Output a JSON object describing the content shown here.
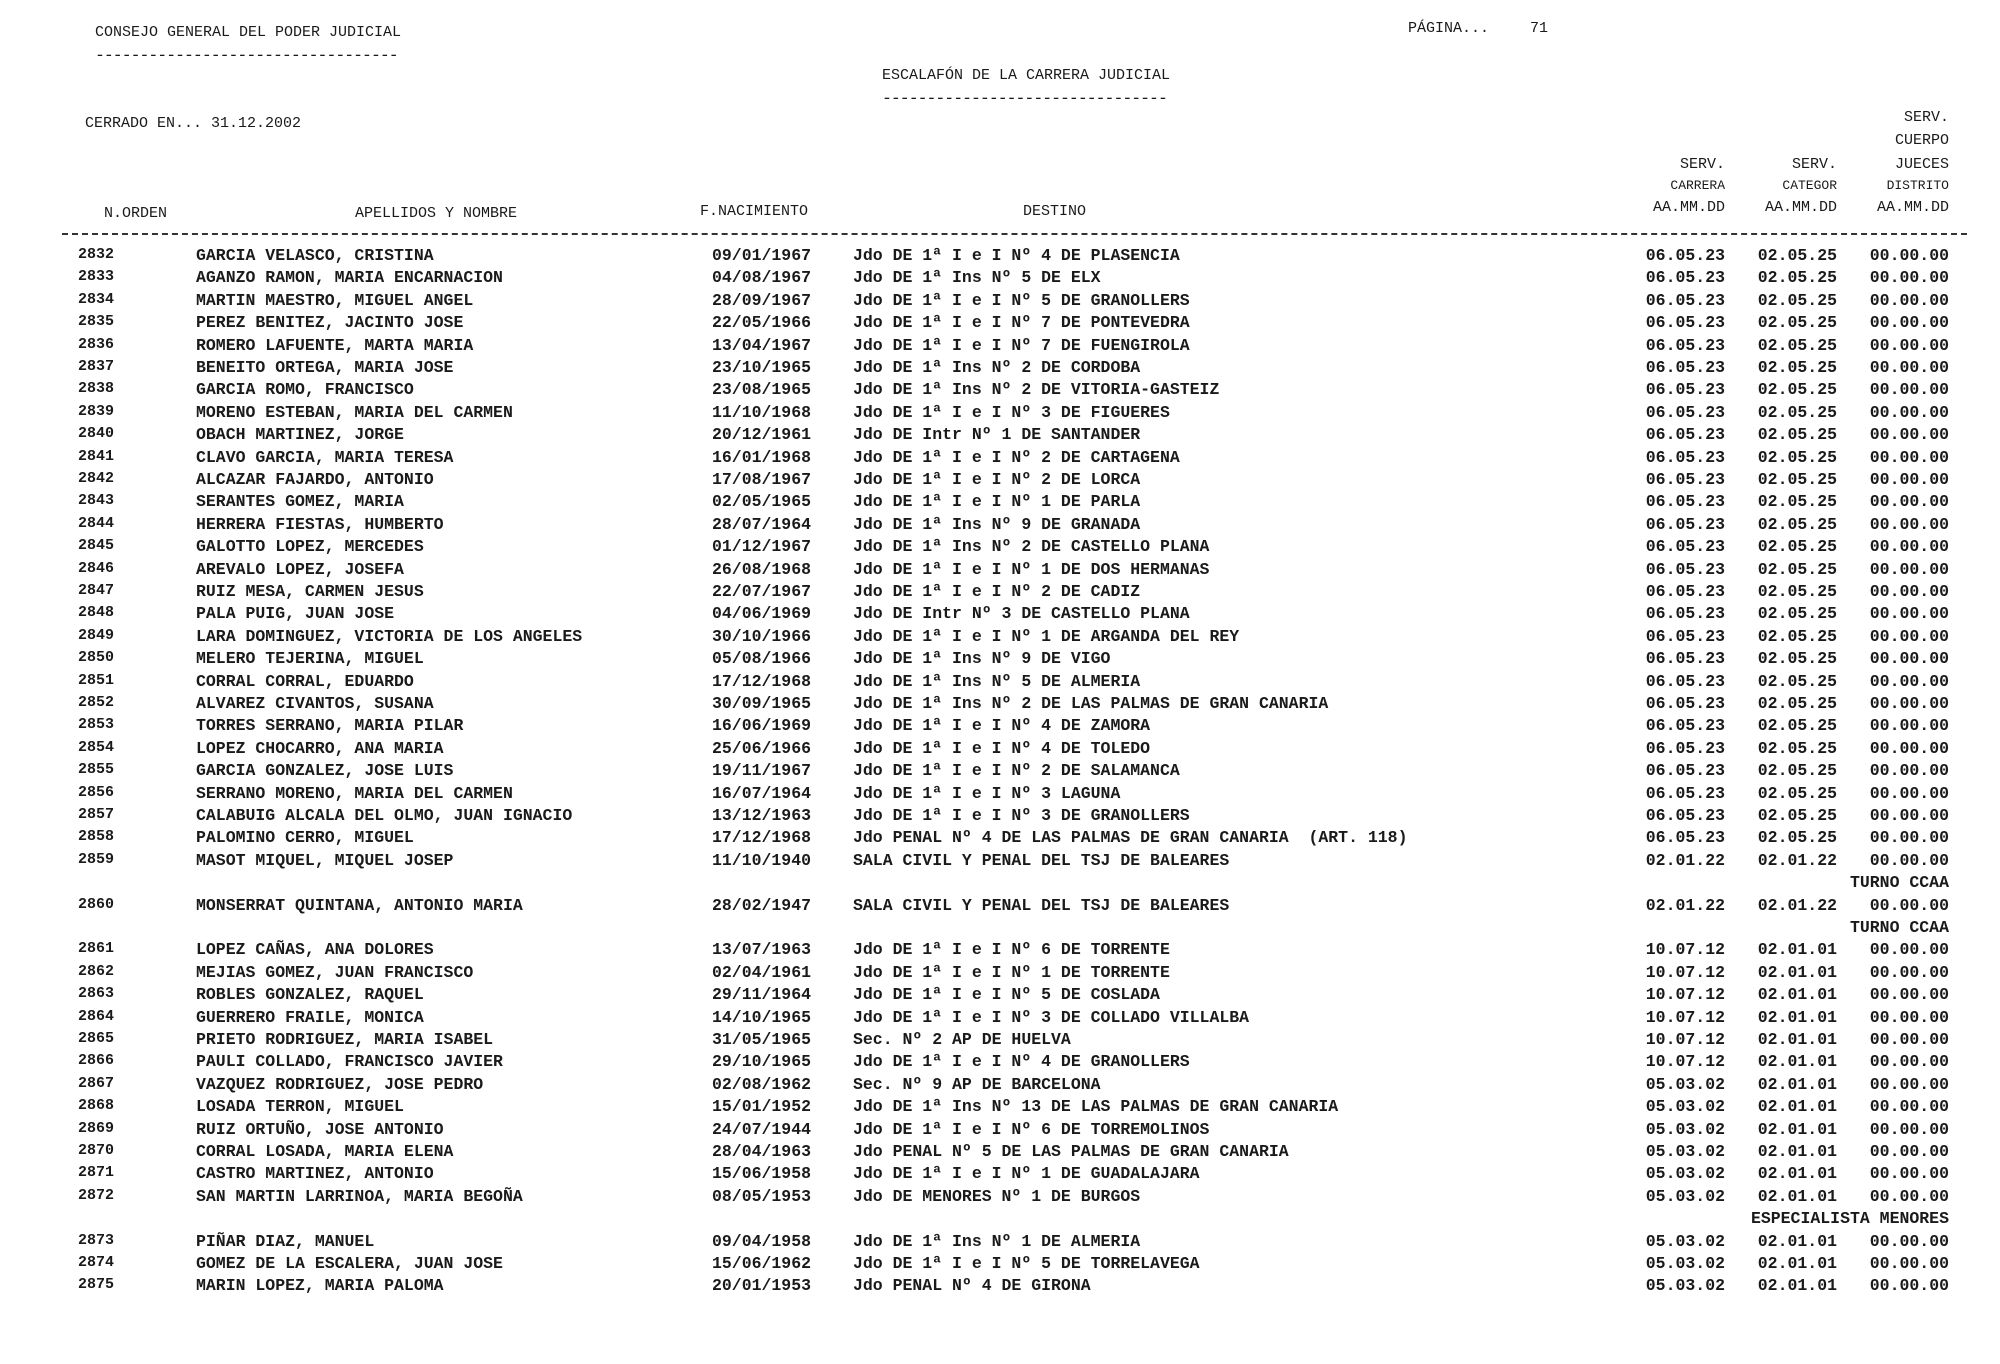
{
  "header": {
    "org": "CONSEJO GENERAL DEL PODER JUDICIAL",
    "page_label": "PÁGINA...",
    "page_number": "71",
    "title": "ESCALAFÓN DE LA CARRERA JUDICIAL",
    "closed": "CERRADO EN... 31.12.2002"
  },
  "columns": {
    "orden": "N.ORDEN",
    "nombre": "APELLIDOS Y NOMBRE",
    "nacimiento": "F.NACIMIENTO",
    "destino": "DESTINO",
    "carrera": [
      "SERV.",
      "CARRERA",
      "AA.MM.DD"
    ],
    "categor": [
      "SERV.",
      "CATEGOR",
      "AA.MM.DD"
    ],
    "jueces": [
      "SERV.",
      "CUERPO",
      "JUECES",
      "DISTRITO",
      "AA.MM.DD"
    ]
  },
  "rows": [
    {
      "n": "2832",
      "name": "GARCIA VELASCO, CRISTINA",
      "date": "09/01/1967",
      "dest": "Jdo DE 1ª I e I Nº 4 DE PLASENCIA",
      "s1": "06.05.23",
      "s2": "02.05.25",
      "s3": "00.00.00"
    },
    {
      "n": "2833",
      "name": "AGANZO RAMON, MARIA ENCARNACION",
      "date": "04/08/1967",
      "dest": "Jdo DE 1ª Ins Nº 5 DE ELX",
      "s1": "06.05.23",
      "s2": "02.05.25",
      "s3": "00.00.00"
    },
    {
      "n": "2834",
      "name": "MARTIN MAESTRO, MIGUEL ANGEL",
      "date": "28/09/1967",
      "dest": "Jdo DE 1ª I e I Nº 5 DE GRANOLLERS",
      "s1": "06.05.23",
      "s2": "02.05.25",
      "s3": "00.00.00"
    },
    {
      "n": "2835",
      "name": "PEREZ BENITEZ, JACINTO JOSE",
      "date": "22/05/1966",
      "dest": "Jdo DE 1ª I e I Nº 7 DE PONTEVEDRA",
      "s1": "06.05.23",
      "s2": "02.05.25",
      "s3": "00.00.00"
    },
    {
      "n": "2836",
      "name": "ROMERO LAFUENTE, MARTA MARIA",
      "date": "13/04/1967",
      "dest": "Jdo DE 1ª I e I Nº 7 DE FUENGIROLA",
      "s1": "06.05.23",
      "s2": "02.05.25",
      "s3": "00.00.00"
    },
    {
      "n": "2837",
      "name": "BENEITO ORTEGA, MARIA JOSE",
      "date": "23/10/1965",
      "dest": "Jdo DE 1ª Ins Nº 2 DE CORDOBA",
      "s1": "06.05.23",
      "s2": "02.05.25",
      "s3": "00.00.00"
    },
    {
      "n": "2838",
      "name": "GARCIA ROMO, FRANCISCO",
      "date": "23/08/1965",
      "dest": "Jdo DE 1ª Ins Nº 2 DE VITORIA-GASTEIZ",
      "s1": "06.05.23",
      "s2": "02.05.25",
      "s3": "00.00.00"
    },
    {
      "n": "2839",
      "name": "MORENO ESTEBAN, MARIA DEL CARMEN",
      "date": "11/10/1968",
      "dest": "Jdo DE 1ª I e I Nº 3 DE FIGUERES",
      "s1": "06.05.23",
      "s2": "02.05.25",
      "s3": "00.00.00"
    },
    {
      "n": "2840",
      "name": "OBACH MARTINEZ, JORGE",
      "date": "20/12/1961",
      "dest": "Jdo DE Intr Nº 1 DE SANTANDER",
      "s1": "06.05.23",
      "s2": "02.05.25",
      "s3": "00.00.00"
    },
    {
      "n": "2841",
      "name": "CLAVO GARCIA, MARIA TERESA",
      "date": "16/01/1968",
      "dest": "Jdo DE 1ª I e I Nº 2 DE CARTAGENA",
      "s1": "06.05.23",
      "s2": "02.05.25",
      "s3": "00.00.00"
    },
    {
      "n": "2842",
      "name": "ALCAZAR FAJARDO, ANTONIO",
      "date": "17/08/1967",
      "dest": "Jdo DE 1ª I e I Nº 2 DE LORCA",
      "s1": "06.05.23",
      "s2": "02.05.25",
      "s3": "00.00.00"
    },
    {
      "n": "2843",
      "name": "SERANTES GOMEZ, MARIA",
      "date": "02/05/1965",
      "dest": "Jdo DE 1ª I e I Nº 1 DE PARLA",
      "s1": "06.05.23",
      "s2": "02.05.25",
      "s3": "00.00.00"
    },
    {
      "n": "2844",
      "name": "HERRERA FIESTAS, HUMBERTO",
      "date": "28/07/1964",
      "dest": "Jdo DE 1ª Ins Nº 9 DE GRANADA",
      "s1": "06.05.23",
      "s2": "02.05.25",
      "s3": "00.00.00"
    },
    {
      "n": "2845",
      "name": "GALOTTO LOPEZ, MERCEDES",
      "date": "01/12/1967",
      "dest": "Jdo DE 1ª Ins Nº 2 DE CASTELLO PLANA",
      "s1": "06.05.23",
      "s2": "02.05.25",
      "s3": "00.00.00"
    },
    {
      "n": "2846",
      "name": "AREVALO LOPEZ, JOSEFA",
      "date": "26/08/1968",
      "dest": "Jdo DE 1ª I e I Nº 1 DE DOS HERMANAS",
      "s1": "06.05.23",
      "s2": "02.05.25",
      "s3": "00.00.00"
    },
    {
      "n": "2847",
      "name": "RUIZ MESA, CARMEN JESUS",
      "date": "22/07/1967",
      "dest": "Jdo DE 1ª I e I Nº 2 DE CADIZ",
      "s1": "06.05.23",
      "s2": "02.05.25",
      "s3": "00.00.00"
    },
    {
      "n": "2848",
      "name": "PALA PUIG, JUAN JOSE",
      "date": "04/06/1969",
      "dest": "Jdo DE Intr Nº 3 DE CASTELLO PLANA",
      "s1": "06.05.23",
      "s2": "02.05.25",
      "s3": "00.00.00"
    },
    {
      "n": "2849",
      "name": "LARA DOMINGUEZ, VICTORIA DE LOS ANGELES",
      "date": "30/10/1966",
      "dest": "Jdo DE 1ª I e I Nº 1 DE ARGANDA DEL REY",
      "s1": "06.05.23",
      "s2": "02.05.25",
      "s3": "00.00.00"
    },
    {
      "n": "2850",
      "name": "MELERO TEJERINA, MIGUEL",
      "date": "05/08/1966",
      "dest": "Jdo DE 1ª Ins Nº 9 DE VIGO",
      "s1": "06.05.23",
      "s2": "02.05.25",
      "s3": "00.00.00"
    },
    {
      "n": "2851",
      "name": "CORRAL CORRAL, EDUARDO",
      "date": "17/12/1968",
      "dest": "Jdo DE 1ª Ins Nº 5 DE ALMERIA",
      "s1": "06.05.23",
      "s2": "02.05.25",
      "s3": "00.00.00"
    },
    {
      "n": "2852",
      "name": "ALVAREZ CIVANTOS, SUSANA",
      "date": "30/09/1965",
      "dest": "Jdo DE 1ª Ins Nº 2 DE LAS PALMAS DE GRAN CANARIA",
      "s1": "06.05.23",
      "s2": "02.05.25",
      "s3": "00.00.00"
    },
    {
      "n": "2853",
      "name": "TORRES SERRANO, MARIA PILAR",
      "date": "16/06/1969",
      "dest": "Jdo DE 1ª I e I Nº 4 DE ZAMORA",
      "s1": "06.05.23",
      "s2": "02.05.25",
      "s3": "00.00.00"
    },
    {
      "n": "2854",
      "name": "LOPEZ CHOCARRO, ANA MARIA",
      "date": "25/06/1966",
      "dest": "Jdo DE 1ª I e I Nº 4 DE TOLEDO",
      "s1": "06.05.23",
      "s2": "02.05.25",
      "s3": "00.00.00"
    },
    {
      "n": "2855",
      "name": "GARCIA GONZALEZ, JOSE LUIS",
      "date": "19/11/1967",
      "dest": "Jdo DE 1ª I e I Nº 2 DE SALAMANCA",
      "s1": "06.05.23",
      "s2": "02.05.25",
      "s3": "00.00.00"
    },
    {
      "n": "2856",
      "name": "SERRANO MORENO, MARIA DEL CARMEN",
      "date": "16/07/1964",
      "dest": "Jdo DE 1ª I e I Nº 3 LAGUNA",
      "s1": "06.05.23",
      "s2": "02.05.25",
      "s3": "00.00.00"
    },
    {
      "n": "2857",
      "name": "CALABUIG ALCALA DEL OLMO, JUAN IGNACIO",
      "date": "13/12/1963",
      "dest": "Jdo DE 1ª I e I Nº 3 DE GRANOLLERS",
      "s1": "06.05.23",
      "s2": "02.05.25",
      "s3": "00.00.00"
    },
    {
      "n": "2858",
      "name": "PALOMINO CERRO, MIGUEL",
      "date": "17/12/1968",
      "dest": "Jdo PENAL Nº 4 DE LAS PALMAS DE GRAN CANARIA  (ART. 118)",
      "s1": "06.05.23",
      "s2": "02.05.25",
      "s3": "00.00.00"
    },
    {
      "n": "2859",
      "name": "MASOT MIQUEL, MIQUEL JOSEP",
      "date": "11/10/1940",
      "dest": "SALA CIVIL Y PENAL DEL TSJ DE BALEARES",
      "s1": "02.01.22",
      "s2": "02.01.22",
      "s3": "00.00.00"
    },
    {
      "note": "TURNO CCAA"
    },
    {
      "n": "2860",
      "name": "MONSERRAT QUINTANA, ANTONIO MARIA",
      "date": "28/02/1947",
      "dest": "SALA CIVIL Y PENAL DEL TSJ DE BALEARES",
      "s1": "02.01.22",
      "s2": "02.01.22",
      "s3": "00.00.00"
    },
    {
      "note": "TURNO CCAA"
    },
    {
      "n": "2861",
      "name": "LOPEZ CAÑAS, ANA DOLORES",
      "date": "13/07/1963",
      "dest": "Jdo DE 1ª I e I Nº 6 DE TORRENTE",
      "s1": "10.07.12",
      "s2": "02.01.01",
      "s3": "00.00.00"
    },
    {
      "n": "2862",
      "name": "MEJIAS GOMEZ, JUAN FRANCISCO",
      "date": "02/04/1961",
      "dest": "Jdo DE 1ª I e I Nº 1 DE TORRENTE",
      "s1": "10.07.12",
      "s2": "02.01.01",
      "s3": "00.00.00"
    },
    {
      "n": "2863",
      "name": "ROBLES GONZALEZ, RAQUEL",
      "date": "29/11/1964",
      "dest": "Jdo DE 1ª I e I Nº 5 DE COSLADA",
      "s1": "10.07.12",
      "s2": "02.01.01",
      "s3": "00.00.00"
    },
    {
      "n": "2864",
      "name": "GUERRERO FRAILE, MONICA",
      "date": "14/10/1965",
      "dest": "Jdo DE 1ª I e I Nº 3 DE COLLADO VILLALBA",
      "s1": "10.07.12",
      "s2": "02.01.01",
      "s3": "00.00.00"
    },
    {
      "n": "2865",
      "name": "PRIETO RODRIGUEZ, MARIA ISABEL",
      "date": "31/05/1965",
      "dest": "Sec. Nº 2 AP DE HUELVA",
      "s1": "10.07.12",
      "s2": "02.01.01",
      "s3": "00.00.00"
    },
    {
      "n": "2866",
      "name": "PAULI COLLADO, FRANCISCO JAVIER",
      "date": "29/10/1965",
      "dest": "Jdo DE 1ª I e I Nº 4 DE GRANOLLERS",
      "s1": "10.07.12",
      "s2": "02.01.01",
      "s3": "00.00.00"
    },
    {
      "n": "2867",
      "name": "VAZQUEZ RODRIGUEZ, JOSE PEDRO",
      "date": "02/08/1962",
      "dest": "Sec. Nº 9 AP DE BARCELONA",
      "s1": "05.03.02",
      "s2": "02.01.01",
      "s3": "00.00.00"
    },
    {
      "n": "2868",
      "name": "LOSADA TERRON, MIGUEL",
      "date": "15/01/1952",
      "dest": "Jdo DE 1ª Ins Nº 13 DE LAS PALMAS DE GRAN CANARIA",
      "s1": "05.03.02",
      "s2": "02.01.01",
      "s3": "00.00.00"
    },
    {
      "n": "2869",
      "name": "RUIZ ORTUÑO, JOSE ANTONIO",
      "date": "24/07/1944",
      "dest": "Jdo DE 1ª I e I Nº 6 DE TORREMOLINOS",
      "s1": "05.03.02",
      "s2": "02.01.01",
      "s3": "00.00.00"
    },
    {
      "n": "2870",
      "name": "CORRAL LOSADA, MARIA ELENA",
      "date": "28/04/1963",
      "dest": "Jdo PENAL Nº 5 DE LAS PALMAS DE GRAN CANARIA",
      "s1": "05.03.02",
      "s2": "02.01.01",
      "s3": "00.00.00"
    },
    {
      "n": "2871",
      "name": "CASTRO MARTINEZ, ANTONIO",
      "date": "15/06/1958",
      "dest": "Jdo DE 1ª I e I Nº 1 DE GUADALAJARA",
      "s1": "05.03.02",
      "s2": "02.01.01",
      "s3": "00.00.00"
    },
    {
      "n": "2872",
      "name": "SAN MARTIN LARRINOA, MARIA BEGOÑA",
      "date": "08/05/1953",
      "dest": "Jdo DE MENORES Nº 1 DE BURGOS",
      "s1": "05.03.02",
      "s2": "02.01.01",
      "s3": "00.00.00"
    },
    {
      "note": "ESPECIALISTA MENORES"
    },
    {
      "n": "2873",
      "name": "PIÑAR DIAZ, MANUEL",
      "date": "09/04/1958",
      "dest": "Jdo DE 1ª Ins Nº 1 DE ALMERIA",
      "s1": "05.03.02",
      "s2": "02.01.01",
      "s3": "00.00.00"
    },
    {
      "n": "2874",
      "name": "GOMEZ DE LA ESCALERA, JUAN JOSE",
      "date": "15/06/1962",
      "dest": "Jdo DE 1ª I e I Nº 5 DE TORRELAVEGA",
      "s1": "05.03.02",
      "s2": "02.01.01",
      "s3": "00.00.00"
    },
    {
      "n": "2875",
      "name": "MARIN LOPEZ, MARIA PALOMA",
      "date": "20/01/1953",
      "dest": "Jdo PENAL Nº 4 DE GIRONA",
      "s1": "05.03.02",
      "s2": "02.01.01",
      "s3": "00.00.00"
    }
  ]
}
